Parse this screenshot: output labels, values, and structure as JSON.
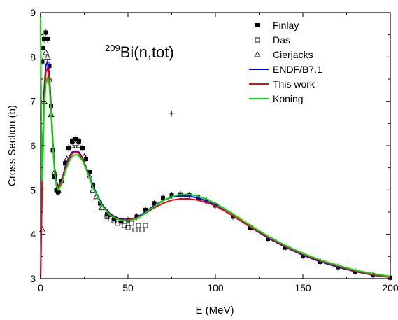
{
  "chart_data": {
    "type": "line",
    "title": {
      "superscript": "209",
      "text": "Bi(n,tot)"
    },
    "xlabel": "E (MeV)",
    "ylabel": "Cross Section (b)",
    "xlim": [
      0,
      200
    ],
    "ylim": [
      3,
      9
    ],
    "xticks": [
      "0",
      "50",
      "100",
      "150",
      "200"
    ],
    "yticks": [
      "3",
      "4",
      "5",
      "6",
      "7",
      "8",
      "9"
    ],
    "grid": false,
    "legend_position": "top-right",
    "colors": {
      "blue": "#0000ff",
      "red": "#ff0000",
      "green": "#00dd00",
      "black": "#000000",
      "gray": "#555555"
    },
    "series": [
      {
        "name": "Finlay",
        "kind": "scatter",
        "marker": "filled-square",
        "color": "#000000",
        "x": [
          1,
          1.5,
          2,
          3,
          4,
          5,
          6,
          7,
          8,
          9,
          10,
          12,
          14,
          16,
          18,
          20,
          22,
          24,
          26,
          28,
          30,
          34,
          38,
          42,
          46,
          50,
          55,
          60,
          65,
          70,
          75,
          80,
          85,
          90,
          95,
          100,
          110,
          120,
          130,
          140,
          150,
          160,
          170,
          180,
          190,
          200
        ],
        "y": [
          7.9,
          8.2,
          8.4,
          8.55,
          8.4,
          7.8,
          6.9,
          5.9,
          5.3,
          5.0,
          4.95,
          5.2,
          5.6,
          5.95,
          6.1,
          6.15,
          6.1,
          5.95,
          5.7,
          5.4,
          5.1,
          4.7,
          4.45,
          4.35,
          4.3,
          4.32,
          4.4,
          4.55,
          4.7,
          4.82,
          4.88,
          4.9,
          4.88,
          4.83,
          4.75,
          4.65,
          4.4,
          4.15,
          3.9,
          3.7,
          3.52,
          3.38,
          3.26,
          3.16,
          3.08,
          3.02
        ]
      },
      {
        "name": "Das",
        "kind": "scatter",
        "marker": "open-square",
        "color": "#000000",
        "x": [
          38,
          40,
          42,
          44,
          46,
          48,
          50,
          52,
          54,
          56,
          58,
          60
        ],
        "y": [
          4.4,
          4.35,
          4.3,
          4.25,
          4.3,
          4.2,
          4.15,
          4.25,
          4.1,
          4.2,
          4.1,
          4.2
        ]
      },
      {
        "name": "Cierjacks",
        "kind": "scatter",
        "marker": "open-triangle",
        "color": "#000000",
        "x": [
          1,
          2,
          3,
          4,
          5,
          6,
          8,
          10,
          12,
          15,
          18,
          20,
          22,
          25,
          28,
          30,
          32,
          35
        ],
        "y": [
          4.1,
          7.0,
          8.1,
          8.0,
          7.5,
          6.7,
          5.4,
          5.0,
          5.2,
          5.7,
          6.0,
          6.05,
          6.0,
          5.75,
          5.3,
          5.0,
          4.85,
          4.6
        ]
      },
      {
        "name": "ENDF/B7.1",
        "kind": "line",
        "color": "#0000ff",
        "x": [
          0,
          1,
          2,
          3,
          4,
          5,
          6,
          7,
          8,
          9,
          10,
          12,
          14,
          16,
          18,
          20,
          22,
          24,
          26,
          28,
          30,
          35,
          40,
          45,
          50,
          55,
          60,
          65,
          70,
          75,
          80,
          85,
          90,
          95,
          100,
          110,
          120,
          130,
          140,
          150,
          160,
          170,
          180,
          190,
          200
        ],
        "y": [
          3.0,
          5.5,
          7.2,
          7.8,
          7.9,
          7.6,
          6.9,
          6.1,
          5.5,
          5.2,
          5.08,
          5.2,
          5.5,
          5.72,
          5.85,
          5.88,
          5.85,
          5.72,
          5.52,
          5.3,
          5.08,
          4.68,
          4.45,
          4.35,
          4.33,
          4.38,
          4.5,
          4.65,
          4.76,
          4.84,
          4.87,
          4.86,
          4.82,
          4.75,
          4.66,
          4.42,
          4.16,
          3.92,
          3.71,
          3.53,
          3.38,
          3.26,
          3.16,
          3.08,
          3.03
        ]
      },
      {
        "name": "This work",
        "kind": "line",
        "color": "#ff0000",
        "x": [
          0,
          1,
          2,
          3,
          4,
          5,
          6,
          7,
          8,
          9,
          10,
          12,
          14,
          16,
          18,
          20,
          22,
          24,
          26,
          28,
          30,
          35,
          40,
          45,
          50,
          55,
          60,
          65,
          70,
          75,
          80,
          85,
          90,
          95,
          100,
          110,
          120,
          130,
          140,
          150,
          160,
          170,
          180,
          190,
          200
        ],
        "y": [
          3.0,
          5.3,
          7.0,
          7.65,
          7.75,
          7.5,
          6.85,
          6.05,
          5.45,
          5.15,
          5.05,
          5.18,
          5.45,
          5.68,
          5.82,
          5.86,
          5.82,
          5.7,
          5.5,
          5.27,
          5.05,
          4.66,
          4.43,
          4.33,
          4.32,
          4.37,
          4.47,
          4.6,
          4.7,
          4.77,
          4.8,
          4.8,
          4.77,
          4.72,
          4.64,
          4.42,
          4.17,
          3.94,
          3.73,
          3.55,
          3.4,
          3.28,
          3.17,
          3.09,
          3.03
        ]
      },
      {
        "name": "Koning",
        "kind": "line",
        "color": "#00dd00",
        "x": [
          0,
          0.5,
          1,
          2,
          3,
          4,
          5,
          6,
          7,
          8,
          9,
          10,
          12,
          14,
          16,
          18,
          20,
          22,
          24,
          26,
          28,
          30,
          35,
          40,
          45,
          50,
          55,
          60,
          65,
          70,
          75,
          80,
          85,
          90,
          95,
          100,
          110,
          120,
          130,
          140,
          150,
          160,
          170,
          180,
          190,
          200
        ],
        "y": [
          9.0,
          6.0,
          5.2,
          6.8,
          7.4,
          7.55,
          7.35,
          6.75,
          6.0,
          5.4,
          5.1,
          5.0,
          5.12,
          5.4,
          5.62,
          5.76,
          5.8,
          5.77,
          5.66,
          5.48,
          5.26,
          5.05,
          4.65,
          4.42,
          4.32,
          4.3,
          4.35,
          4.48,
          4.63,
          4.76,
          4.85,
          4.9,
          4.9,
          4.86,
          4.79,
          4.7,
          4.46,
          4.2,
          3.96,
          3.75,
          3.57,
          3.42,
          3.3,
          3.19,
          3.11,
          3.05
        ]
      }
    ],
    "annotations": [
      {
        "type": "outlier-point",
        "x": 75,
        "y": 6.72,
        "marker": "plus-with-errorbar"
      }
    ]
  }
}
